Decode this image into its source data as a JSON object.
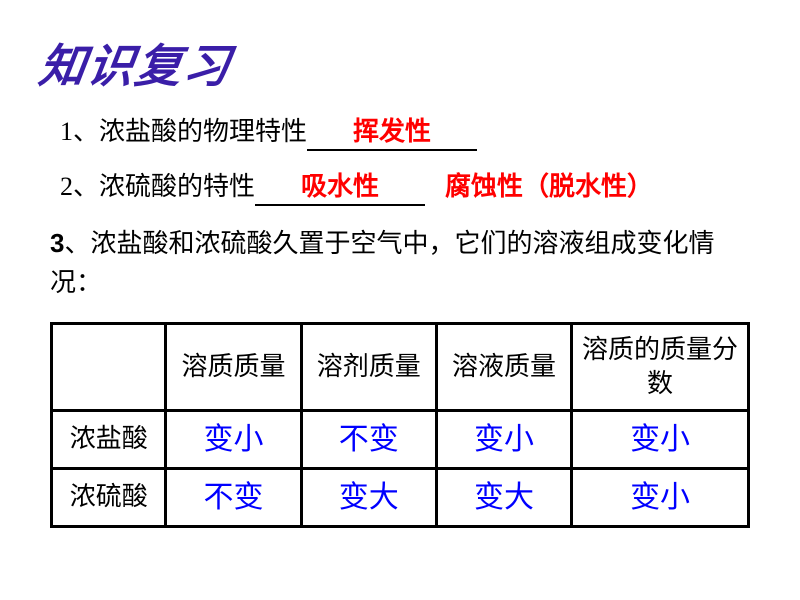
{
  "title": "知识复习",
  "line1": {
    "prefix": "1、浓盐酸的物理特性",
    "fill": "挥发性"
  },
  "line2": {
    "prefix": "2、浓硫酸的特性",
    "fill": "吸水性",
    "extra": "腐蚀性（脱水性）"
  },
  "paragraph": {
    "num": "3",
    "text": "、浓盐酸和浓硫酸久置于空气中，它们的溶液组成变化情况："
  },
  "table": {
    "headers": [
      "",
      "溶质质量",
      "溶剂质量",
      "溶液质量",
      "溶质的质量分数"
    ],
    "rows": [
      {
        "label": "浓盐酸",
        "cells": [
          "变小",
          "不变",
          "变小",
          "变小"
        ]
      },
      {
        "label": "浓硫酸",
        "cells": [
          "不变",
          "变大",
          "变大",
          "变小"
        ]
      }
    ]
  },
  "colors": {
    "title": "#3a1ea8",
    "fill": "#ff0000",
    "cell": "#0000ff",
    "text": "#000000",
    "border": "#000000"
  }
}
